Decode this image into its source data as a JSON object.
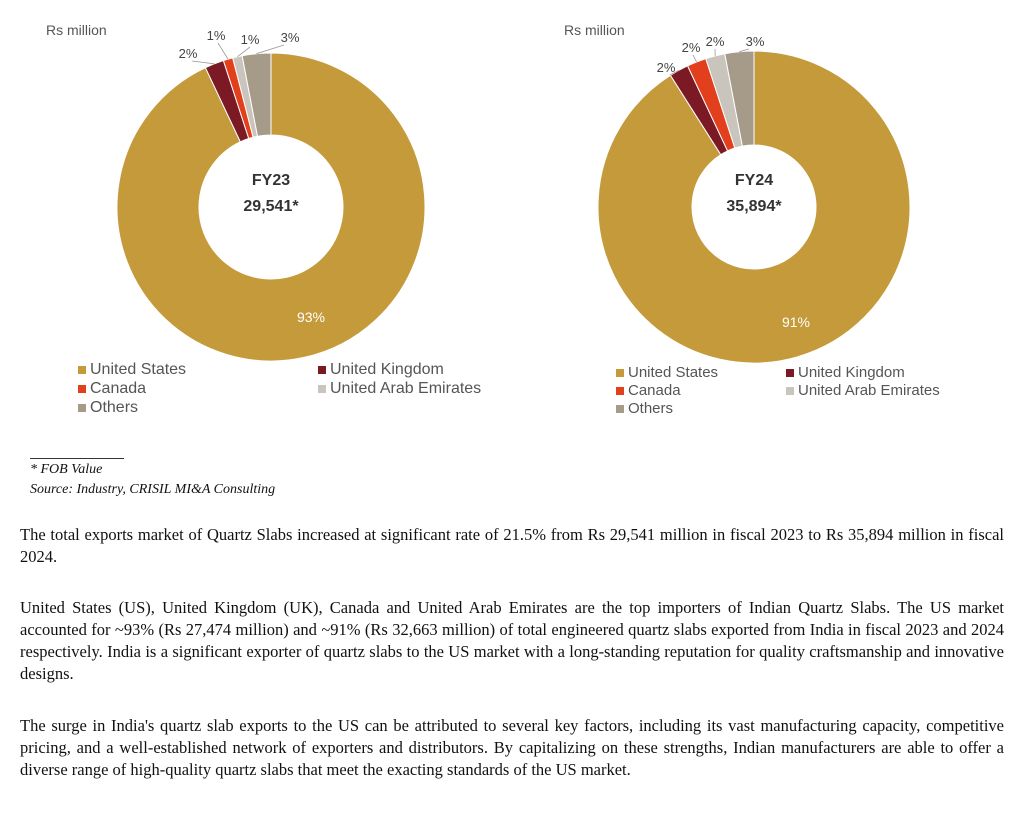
{
  "chart_data": [
    {
      "type": "pie",
      "unit_label": "Rs million",
      "center_title": "FY23",
      "center_value": "29,541*",
      "slices": [
        {
          "name": "United States",
          "value": 93,
          "label": "93%",
          "color": "#C59A3B"
        },
        {
          "name": "United Kingdom",
          "value": 2,
          "label": "2%",
          "color": "#7B1A24"
        },
        {
          "name": "Canada",
          "value": 1,
          "label": "1%",
          "color": "#E2401C"
        },
        {
          "name": "United Arab Emirates",
          "value": 1,
          "label": "1%",
          "color": "#C9C5BC"
        },
        {
          "name": "Others",
          "value": 3,
          "label": "3%",
          "color": "#A69A88"
        }
      ],
      "legend": [
        "United States",
        "United Kingdom",
        "Canada",
        "United Arab Emirates",
        "Others"
      ]
    },
    {
      "type": "pie",
      "unit_label": "Rs million",
      "center_title": "FY24",
      "center_value": "35,894*",
      "slices": [
        {
          "name": "United States",
          "value": 91,
          "label": "91%",
          "color": "#C59A3B"
        },
        {
          "name": "United Kingdom",
          "value": 2,
          "label": "2%",
          "color": "#7B1A24"
        },
        {
          "name": "Canada",
          "value": 2,
          "label": "2%",
          "color": "#E2401C"
        },
        {
          "name": "United Arab Emirates",
          "value": 2,
          "label": "2%",
          "color": "#C9C5BC"
        },
        {
          "name": "Others",
          "value": 3,
          "label": "3%",
          "color": "#A69A88"
        }
      ],
      "legend": [
        "United States",
        "United Kingdom",
        "Canada",
        "United Arab Emirates",
        "Others"
      ]
    }
  ],
  "footnotes": {
    "fob": "* FOB Value",
    "source": "Source: Industry, CRISIL MI&A Consulting"
  },
  "paragraphs": [
    "The total exports market of Quartz Slabs increased at significant rate of 21.5% from Rs 29,541 million in fiscal 2023 to Rs 35,894 million in fiscal 2024.",
    "United States (US), United Kingdom (UK), Canada and United Arab Emirates are the top importers of Indian Quartz Slabs. The US market accounted for ~93% (Rs 27,474 million) and ~91% (Rs 32,663 million) of total engineered quartz slabs exported from India in fiscal 2023 and 2024 respectively. India is a significant exporter of quartz slabs to the US market with a long-standing reputation for quality craftsmanship and innovative designs.",
    "The surge in India's quartz slab exports to the US can be attributed to several key factors, including its vast manufacturing capacity, competitive pricing, and a well-established network of exporters and distributors. By capitalizing on these strengths, Indian manufacturers are able to offer a diverse range of high-quality quartz slabs that meet the exacting standards of the US market."
  ]
}
